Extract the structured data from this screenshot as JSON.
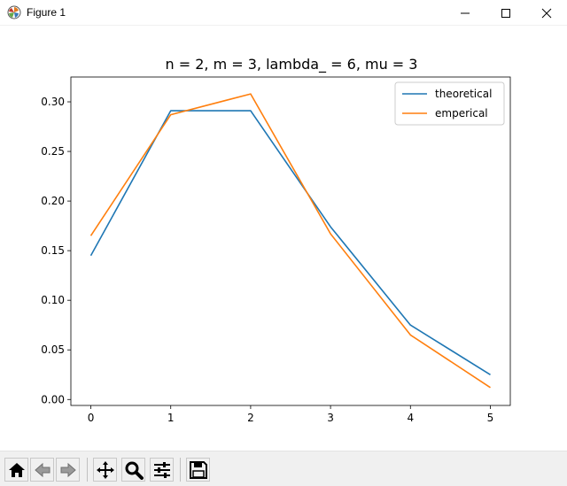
{
  "window": {
    "title": "Figure 1",
    "icons": {
      "app": "matplotlib-icon",
      "minimize": "minimize-icon",
      "maximize": "maximize-icon",
      "close": "close-icon"
    }
  },
  "toolbar": {
    "buttons": [
      {
        "id": "home",
        "icon": "home-icon"
      },
      {
        "id": "back",
        "icon": "back-arrow-icon"
      },
      {
        "id": "forward",
        "icon": "forward-arrow-icon"
      },
      {
        "id": "pan",
        "icon": "move-icon"
      },
      {
        "id": "zoom",
        "icon": "zoom-icon"
      },
      {
        "id": "configure",
        "icon": "sliders-icon"
      },
      {
        "id": "save",
        "icon": "save-icon"
      }
    ]
  },
  "chart_data": {
    "type": "line",
    "title": "n = 2, m = 3, lambda_ = 6, mu = 3",
    "xlabel": "",
    "ylabel": "",
    "x": [
      0,
      1,
      2,
      3,
      4,
      5
    ],
    "xlim": [
      -0.25,
      5.25
    ],
    "ylim": [
      -0.006,
      0.325
    ],
    "xticks": [
      0,
      1,
      2,
      3,
      4,
      5
    ],
    "yticks": [
      "0.00",
      "0.05",
      "0.10",
      "0.15",
      "0.20",
      "0.25",
      "0.30"
    ],
    "grid": false,
    "legend_position": "upper right",
    "series": [
      {
        "name": "theoretical",
        "color": "#1f77b4",
        "values": [
          0.145,
          0.291,
          0.291,
          0.174,
          0.075,
          0.025
        ]
      },
      {
        "name": "emperical",
        "color": "#ff7f0e",
        "values": [
          0.165,
          0.287,
          0.308,
          0.167,
          0.065,
          0.012
        ]
      }
    ]
  }
}
